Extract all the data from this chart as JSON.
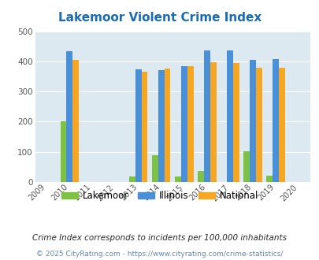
{
  "title": "Lakemoor Violent Crime Index",
  "years": [
    2009,
    2010,
    2011,
    2012,
    2013,
    2014,
    2015,
    2016,
    2017,
    2018,
    2019,
    2020
  ],
  "data_years": [
    2010,
    2013,
    2014,
    2015,
    2016,
    2017,
    2018,
    2019
  ],
  "lakemoor": [
    200,
    18,
    88,
    18,
    37,
    0,
    103,
    20
  ],
  "illinois": [
    433,
    373,
    370,
    383,
    437,
    437,
    405,
    408
  ],
  "national": [
    405,
    367,
    376,
    383,
    397,
    394,
    379,
    379
  ],
  "bar_color_lakemoor": "#7dc242",
  "bar_color_illinois": "#4a90d9",
  "bar_color_national": "#f5a623",
  "bg_color": "#dce9f0",
  "ylim": [
    0,
    500
  ],
  "yticks": [
    0,
    100,
    200,
    300,
    400,
    500
  ],
  "footnote1": "Crime Index corresponds to incidents per 100,000 inhabitants",
  "footnote2": "© 2025 CityRating.com - https://www.cityrating.com/crime-statistics/",
  "legend_labels": [
    "Lakemoor",
    "Illinois",
    "National"
  ],
  "title_color": "#1a6bb5",
  "footnote1_color": "#2a2a2a",
  "footnote2_color": "#6688aa",
  "bar_width": 0.27
}
